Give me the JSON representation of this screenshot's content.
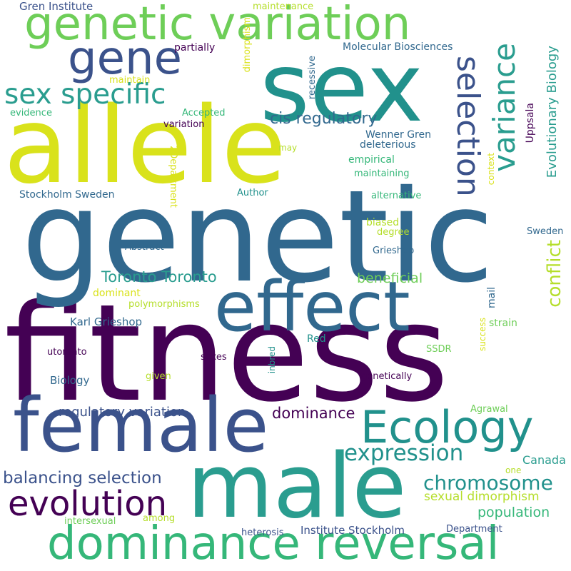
{
  "colors": {
    "c1": "#440154",
    "c2": "#3b528b",
    "c3": "#31688e",
    "c4": "#21918c",
    "c5": "#2a9d8f",
    "c6": "#35b779",
    "c7": "#6ece58",
    "c8": "#b5de2b",
    "c9": "#d9e21b",
    "bg": "#ffffff"
  },
  "words": [
    {
      "text": "fitness",
      "weight": 100,
      "color": "#440154"
    },
    {
      "text": "genetic",
      "weight": 88,
      "color": "#31688e"
    },
    {
      "text": "allele",
      "weight": 75,
      "color": "#d9e21b"
    },
    {
      "text": "sex",
      "weight": 72,
      "color": "#21918c"
    },
    {
      "text": "male",
      "weight": 70,
      "color": "#2a9d8f"
    },
    {
      "text": "female",
      "weight": 62,
      "color": "#3b528b"
    },
    {
      "text": "effect",
      "weight": 55,
      "color": "#31688e"
    },
    {
      "text": "dominance reversal",
      "weight": 50,
      "color": "#35b779"
    },
    {
      "text": "genetic variation",
      "weight": 48,
      "color": "#6ece58"
    },
    {
      "text": "Ecology",
      "weight": 40,
      "color": "#21918c"
    },
    {
      "text": "gene",
      "weight": 38,
      "color": "#3b528b"
    },
    {
      "text": "evolution",
      "weight": 33,
      "color": "#440154"
    },
    {
      "text": "sex specific",
      "weight": 32,
      "color": "#2a9d8f"
    },
    {
      "text": "selection",
      "weight": 32,
      "color": "#3b528b"
    },
    {
      "text": "variance",
      "weight": 32,
      "color": "#2a9d8f"
    },
    {
      "text": "expression",
      "weight": 25,
      "color": "#21918c"
    },
    {
      "text": "chromosome",
      "weight": 24,
      "color": "#21918c"
    },
    {
      "text": "conflict",
      "weight": 22,
      "color": "#b5de2b"
    },
    {
      "text": "balancing selection",
      "weight": 20,
      "color": "#3b528b"
    },
    {
      "text": "cis regulatory",
      "weight": 18,
      "color": "#31688e"
    },
    {
      "text": "Toronto Toronto",
      "weight": 18,
      "color": "#2a9d8f"
    },
    {
      "text": "dominance",
      "weight": 18,
      "color": "#440154"
    },
    {
      "text": "Evolutionary Biology",
      "weight": 16,
      "color": "#2a9d8f"
    },
    {
      "text": "population",
      "weight": 16,
      "color": "#35b779"
    },
    {
      "text": "regulatory variation",
      "weight": 16,
      "color": "#3b528b"
    },
    {
      "text": "beneficial",
      "weight": 16,
      "color": "#6ece58"
    },
    {
      "text": "sexual dimorphism",
      "weight": 15,
      "color": "#b5de2b"
    },
    {
      "text": "Canada",
      "weight": 14,
      "color": "#2a9d8f"
    },
    {
      "text": "Institute Stockholm",
      "weight": 14,
      "color": "#3b528b"
    },
    {
      "text": "Molecular Biosciences",
      "weight": 13,
      "color": "#31688e"
    },
    {
      "text": "Gren Institute",
      "weight": 13,
      "color": "#3b528b"
    },
    {
      "text": "Karl Grieshop",
      "weight": 13,
      "color": "#31688e"
    },
    {
      "text": "Biology",
      "weight": 13,
      "color": "#31688e"
    },
    {
      "text": "Stockholm Sweden",
      "weight": 13,
      "color": "#31688e"
    },
    {
      "text": "Wenner Gren",
      "weight": 13,
      "color": "#31688e"
    },
    {
      "text": "Uppsala",
      "weight": 13,
      "color": "#440154"
    },
    {
      "text": "mail",
      "weight": 13,
      "color": "#31688e"
    },
    {
      "text": "partially",
      "weight": 13,
      "color": "#440154"
    },
    {
      "text": "deleterious",
      "weight": 13,
      "color": "#31688e"
    },
    {
      "text": "empirical",
      "weight": 13,
      "color": "#35b779"
    },
    {
      "text": "Author",
      "weight": 12,
      "color": "#21918c"
    },
    {
      "text": "biased",
      "weight": 13,
      "color": "#b5de2b"
    },
    {
      "text": "dominant",
      "weight": 13,
      "color": "#d9e21b"
    },
    {
      "text": "strain",
      "weight": 13,
      "color": "#6ece58"
    },
    {
      "text": "variation",
      "weight": 13,
      "color": "#440154"
    },
    {
      "text": "Accepted",
      "weight": 12,
      "color": "#35b779"
    },
    {
      "text": "maintaining",
      "weight": 12,
      "color": "#35b779"
    },
    {
      "text": "Abstract",
      "weight": 12,
      "color": "#31688e"
    },
    {
      "text": "polymorphisms",
      "weight": 12,
      "color": "#b5de2b"
    },
    {
      "text": "Red",
      "weight": 13,
      "color": "#21918c"
    },
    {
      "text": "SSDR",
      "weight": 12,
      "color": "#6ece58"
    },
    {
      "text": "utoronto",
      "weight": 12,
      "color": "#440154"
    },
    {
      "text": "sexes",
      "weight": 12,
      "color": "#440154"
    },
    {
      "text": "genetically",
      "weight": 12,
      "color": "#440154"
    },
    {
      "text": "given",
      "weight": 12,
      "color": "#b5de2b"
    },
    {
      "text": "Agrawal",
      "weight": 12,
      "color": "#6ece58"
    },
    {
      "text": "Grieshop",
      "weight": 12,
      "color": "#31688e"
    },
    {
      "text": "Sweden",
      "weight": 12,
      "color": "#31688e"
    },
    {
      "text": "alternative",
      "weight": 12,
      "color": "#35b779"
    },
    {
      "text": "degree",
      "weight": 12,
      "color": "#b5de2b"
    },
    {
      "text": "evidence",
      "weight": 12,
      "color": "#35b779"
    },
    {
      "text": "maintain",
      "weight": 12,
      "color": "#d9e21b"
    },
    {
      "text": "maintenance",
      "weight": 12,
      "color": "#b5de2b"
    },
    {
      "text": "among",
      "weight": 12,
      "color": "#b5de2b"
    },
    {
      "text": "intersexual",
      "weight": 12,
      "color": "#6ece58"
    },
    {
      "text": "heterosis",
      "weight": 12,
      "color": "#3b528b"
    },
    {
      "text": "Department",
      "weight": 12,
      "color": "#3b528b"
    },
    {
      "text": "one",
      "weight": 12,
      "color": "#b5de2b"
    },
    {
      "text": "may",
      "weight": 12,
      "color": "#b5de2b"
    },
    {
      "text": "recessive",
      "weight": 12,
      "color": "#31688e"
    },
    {
      "text": "dimorphism",
      "weight": 12,
      "color": "#d9e21b"
    },
    {
      "text": "context",
      "weight": 11,
      "color": "#d9e21b"
    },
    {
      "text": "success",
      "weight": 11,
      "color": "#d9e21b"
    },
    {
      "text": "inbred",
      "weight": 11,
      "color": "#21918c"
    },
    {
      "text": "2Department",
      "weight": 12,
      "color": "#d9e21b"
    }
  ]
}
